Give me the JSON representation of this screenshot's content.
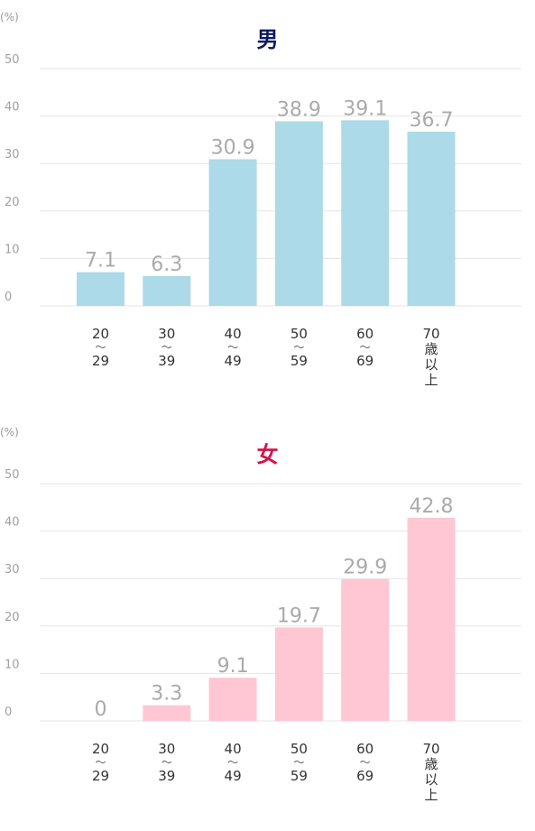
{
  "unit_label": "(%)",
  "chart_data": [
    {
      "type": "bar",
      "title": "男",
      "title_color": "#0f1a5e",
      "bar_color": "#acdae8",
      "ylim": [
        0,
        50
      ],
      "yticks": [
        0,
        10,
        20,
        30,
        40,
        50
      ],
      "grid": true,
      "categories": [
        [
          "20",
          "～",
          "29"
        ],
        [
          "30",
          "～",
          "39"
        ],
        [
          "40",
          "～",
          "49"
        ],
        [
          "50",
          "～",
          "59"
        ],
        [
          "60",
          "～",
          "69"
        ],
        [
          "70",
          "歳",
          "以",
          "上"
        ]
      ],
      "values": [
        7.1,
        6.3,
        30.9,
        38.9,
        39.1,
        36.7
      ],
      "value_labels": [
        "7.1",
        "6.3",
        "30.9",
        "38.9",
        "39.1",
        "36.7"
      ]
    },
    {
      "type": "bar",
      "title": "女",
      "title_color": "#d4144a",
      "bar_color": "#ffc7d4",
      "ylim": [
        0,
        50
      ],
      "yticks": [
        0,
        10,
        20,
        30,
        40,
        50
      ],
      "grid": true,
      "categories": [
        [
          "20",
          "～",
          "29"
        ],
        [
          "30",
          "～",
          "39"
        ],
        [
          "40",
          "～",
          "49"
        ],
        [
          "50",
          "～",
          "59"
        ],
        [
          "60",
          "～",
          "69"
        ],
        [
          "70",
          "歳",
          "以",
          "上"
        ]
      ],
      "values": [
        0,
        3.3,
        9.1,
        19.7,
        29.9,
        42.8
      ],
      "value_labels": [
        "0",
        "3.3",
        "9.1",
        "19.7",
        "29.9",
        "42.8"
      ]
    }
  ]
}
